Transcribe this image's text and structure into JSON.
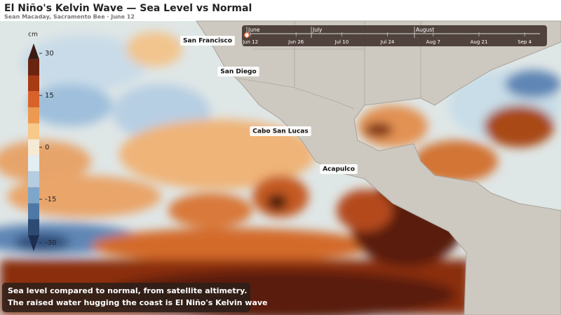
{
  "header": {
    "title": "El Niño's Kelvin Wave — Sea Level vs Normal",
    "byline": "Sean Macaday, Sacramento Bee · June 12"
  },
  "legend": {
    "unit": "cm",
    "range": [
      -30,
      30
    ],
    "ticks": [
      30,
      15,
      0,
      -15,
      -30
    ],
    "colors": [
      "#3b1a12",
      "#6b2410",
      "#a83a14",
      "#d9622a",
      "#ec9a4f",
      "#f6c88a",
      "#f7ead4",
      "#e3eef3",
      "#b5cde0",
      "#7ea6cb",
      "#4e78a6",
      "#2c4a72",
      "#1d2f4f"
    ]
  },
  "places": [
    "San Francisco",
    "San Diego",
    "Cabo San Lucas",
    "Acapulco"
  ],
  "timeline": {
    "months": [
      "June",
      "July",
      "August"
    ],
    "dates": [
      "Jun 12",
      "Jun 26",
      "Jul 10",
      "Jul 24",
      "Aug 7",
      "Aug 21",
      "Sep 4"
    ]
  },
  "caption": [
    "Sea level compared to normal, from satellite altimetry.",
    "The raised water hugging the coast is El Niño's Kelvin wave"
  ]
}
